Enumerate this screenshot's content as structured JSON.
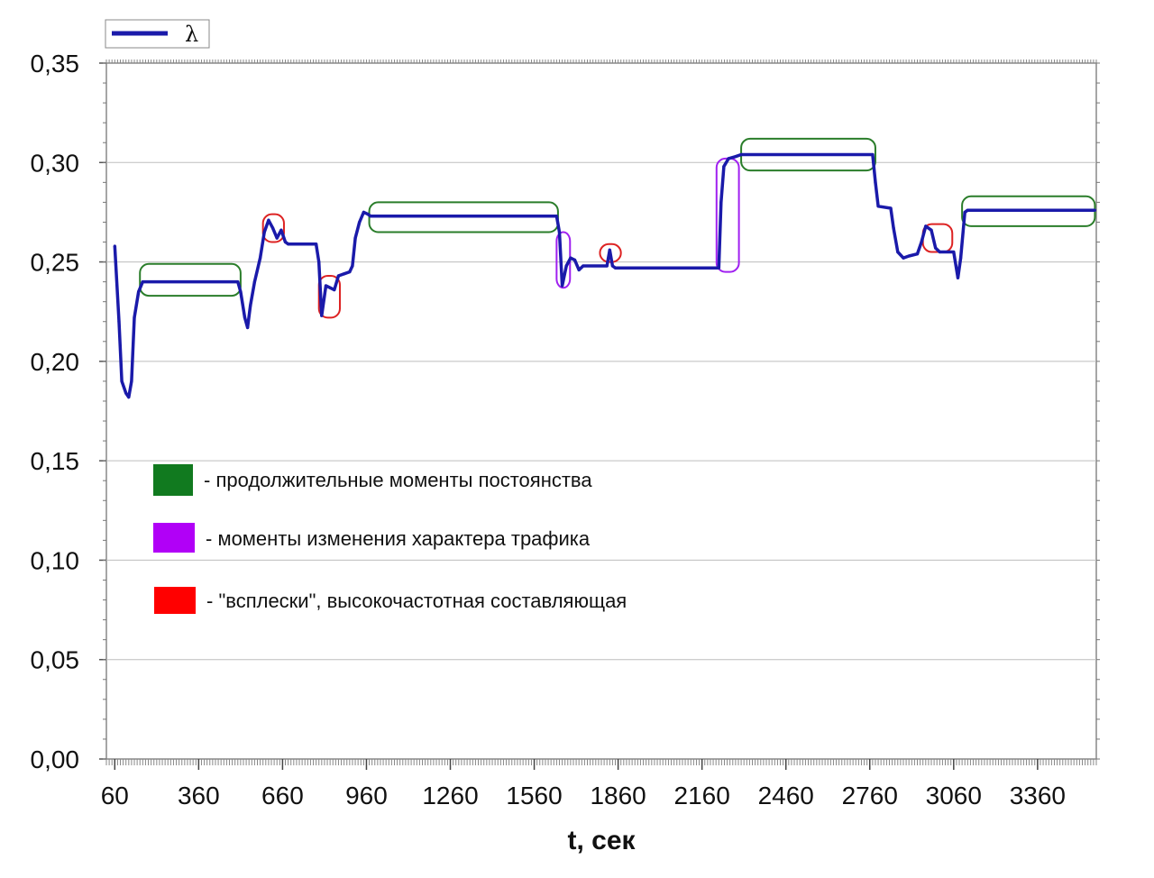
{
  "chart_data": {
    "type": "line",
    "title": "",
    "xlabel": "t, сек",
    "ylabel": "",
    "xlim": [
      30,
      3570
    ],
    "ylim": [
      0,
      0.35
    ],
    "x_ticks": [
      60,
      360,
      660,
      960,
      1260,
      1560,
      1860,
      2160,
      2460,
      2760,
      3060,
      3360
    ],
    "x_tick_labels": [
      "60",
      "360",
      "660",
      "960",
      "1260",
      "1560",
      "1860",
      "2160",
      "2460",
      "2760",
      "3060",
      "3360"
    ],
    "y_ticks": [
      0,
      0.05,
      0.1,
      0.15,
      0.2,
      0.25,
      0.3,
      0.35
    ],
    "y_tick_labels": [
      "0,00",
      "0,05",
      "0,10",
      "0,15",
      "0,20",
      "0,25",
      "0,30",
      "0,35"
    ],
    "legend": {
      "placement": "top-left",
      "entries": [
        "λ"
      ]
    },
    "series": [
      {
        "name": "λ",
        "color": "#1a1aaa",
        "points": [
          [
            60,
            0.258
          ],
          [
            75,
            0.22
          ],
          [
            85,
            0.19
          ],
          [
            100,
            0.184
          ],
          [
            110,
            0.182
          ],
          [
            120,
            0.19
          ],
          [
            130,
            0.222
          ],
          [
            145,
            0.235
          ],
          [
            160,
            0.24
          ],
          [
            500,
            0.24
          ],
          [
            510,
            0.235
          ],
          [
            525,
            0.222
          ],
          [
            535,
            0.217
          ],
          [
            545,
            0.228
          ],
          [
            560,
            0.24
          ],
          [
            580,
            0.252
          ],
          [
            595,
            0.265
          ],
          [
            610,
            0.271
          ],
          [
            625,
            0.267
          ],
          [
            640,
            0.262
          ],
          [
            655,
            0.266
          ],
          [
            670,
            0.26
          ],
          [
            680,
            0.259
          ],
          [
            780,
            0.259
          ],
          [
            790,
            0.25
          ],
          [
            800,
            0.223
          ],
          [
            815,
            0.238
          ],
          [
            830,
            0.237
          ],
          [
            845,
            0.236
          ],
          [
            860,
            0.243
          ],
          [
            880,
            0.244
          ],
          [
            900,
            0.245
          ],
          [
            910,
            0.248
          ],
          [
            920,
            0.262
          ],
          [
            935,
            0.27
          ],
          [
            950,
            0.275
          ],
          [
            965,
            0.274
          ],
          [
            975,
            0.273
          ],
          [
            1640,
            0.273
          ],
          [
            1650,
            0.265
          ],
          [
            1660,
            0.238
          ],
          [
            1675,
            0.248
          ],
          [
            1690,
            0.252
          ],
          [
            1705,
            0.251
          ],
          [
            1720,
            0.246
          ],
          [
            1735,
            0.248
          ],
          [
            1820,
            0.248
          ],
          [
            1830,
            0.256
          ],
          [
            1840,
            0.248
          ],
          [
            1850,
            0.247
          ],
          [
            2220,
            0.247
          ],
          [
            2228,
            0.28
          ],
          [
            2238,
            0.298
          ],
          [
            2255,
            0.302
          ],
          [
            2280,
            0.303
          ],
          [
            2300,
            0.304
          ],
          [
            2770,
            0.304
          ],
          [
            2780,
            0.29
          ],
          [
            2790,
            0.278
          ],
          [
            2835,
            0.277
          ],
          [
            2845,
            0.267
          ],
          [
            2860,
            0.255
          ],
          [
            2880,
            0.252
          ],
          [
            2900,
            0.253
          ],
          [
            2930,
            0.254
          ],
          [
            2945,
            0.26
          ],
          [
            2960,
            0.268
          ],
          [
            2980,
            0.266
          ],
          [
            2995,
            0.257
          ],
          [
            3010,
            0.255
          ],
          [
            3060,
            0.255
          ],
          [
            3075,
            0.242
          ],
          [
            3085,
            0.252
          ],
          [
            3100,
            0.275
          ],
          [
            3110,
            0.276
          ],
          [
            3565,
            0.276
          ]
        ]
      }
    ],
    "regions": [
      {
        "kind": "constancy",
        "color": "#2a7d2a",
        "x": [
          150,
          510
        ],
        "y": [
          0.233,
          0.249
        ]
      },
      {
        "kind": "constancy",
        "color": "#2a7d2a",
        "x": [
          970,
          1645
        ],
        "y": [
          0.265,
          0.28
        ]
      },
      {
        "kind": "constancy",
        "color": "#2a7d2a",
        "x": [
          2300,
          2780
        ],
        "y": [
          0.296,
          0.312
        ]
      },
      {
        "kind": "constancy",
        "color": "#2a7d2a",
        "x": [
          3090,
          3565
        ],
        "y": [
          0.268,
          0.283
        ]
      },
      {
        "kind": "change",
        "color": "#a020f0",
        "x": [
          1640,
          1688
        ],
        "y": [
          0.237,
          0.265
        ]
      },
      {
        "kind": "change",
        "color": "#a020f0",
        "x": [
          2212,
          2292
        ],
        "y": [
          0.245,
          0.302
        ]
      },
      {
        "kind": "burst",
        "color": "#dd2222",
        "x": [
          590,
          665
        ],
        "y": [
          0.26,
          0.274
        ]
      },
      {
        "kind": "burst",
        "color": "#dd2222",
        "x": [
          790,
          865
        ],
        "y": [
          0.222,
          0.243
        ]
      },
      {
        "kind": "burst",
        "color": "#dd2222",
        "x": [
          1795,
          1870
        ],
        "y": [
          0.25,
          0.259
        ]
      },
      {
        "kind": "burst",
        "color": "#dd2222",
        "x": [
          2950,
          3055
        ],
        "y": [
          0.255,
          0.269
        ]
      }
    ],
    "annotations": [
      {
        "kind": "constancy",
        "swatch_color": "#117a1f",
        "text": "- продолжительные моменты постоянства"
      },
      {
        "kind": "change",
        "swatch_color": "#b100f7",
        "text": "- моменты изменения характера трафика"
      },
      {
        "kind": "burst",
        "swatch_color": "#ff0000",
        "text": "- \"всплески\", высокочастотная составляющая"
      }
    ]
  }
}
